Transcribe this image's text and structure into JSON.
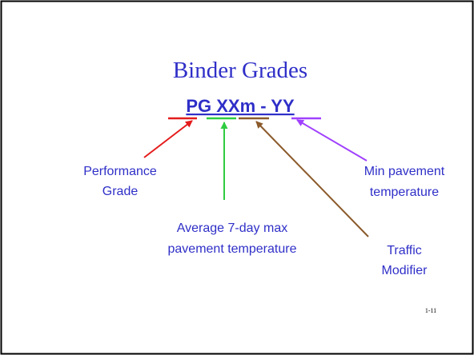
{
  "title": "Binder Grades",
  "formula": "PG XXm - YY",
  "labels": [
    {
      "lines": [
        "Performance",
        "Grade"
      ]
    },
    {
      "lines": [
        "Average 7-day max",
        "pavement temperature"
      ]
    },
    {
      "lines": [
        "Min pavement",
        "temperature"
      ]
    },
    {
      "lines": [
        "Traffic",
        "Modifier"
      ]
    }
  ],
  "page_number": "1-11"
}
